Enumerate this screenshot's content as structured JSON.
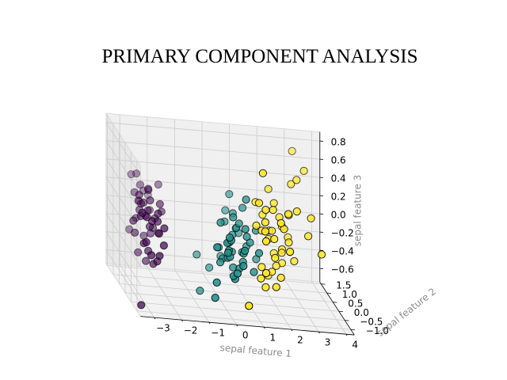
{
  "chart_data": {
    "type": "scatter",
    "projection": "3d",
    "title": "PRIMARY COMPONENT ANALYSIS",
    "xlabel": "sepal feature 1",
    "ylabel": "sepal feature 2",
    "zlabel": "sepal feature 3",
    "xlim": [
      -3.5,
      4.3
    ],
    "ylim": [
      -1.3,
      1.6
    ],
    "zlim": [
      -0.75,
      0.9
    ],
    "xticks": [
      "−3",
      "−2",
      "−1",
      "0",
      "1",
      "2",
      "3",
      "4"
    ],
    "yticks": [
      "−1.0",
      "−0.5",
      "0.0",
      "0.5",
      "1.0",
      "1.5"
    ],
    "zticks": [
      "−0.6",
      "−0.4",
      "−0.2",
      "0.0",
      "0.2",
      "0.4",
      "0.6",
      "0.8"
    ],
    "grid": true,
    "colors": {
      "class_0": "#440154",
      "class_1": "#21918c",
      "class_2": "#fde725"
    },
    "series": [
      {
        "points": [
          [
            -2.8,
            0.3,
            0.05
          ],
          [
            -2.9,
            -0.2,
            -0.15
          ],
          [
            -3.0,
            -0.3,
            0.2
          ],
          [
            -3.1,
            0.1,
            -0.1
          ],
          [
            -2.6,
            0.8,
            0.3
          ],
          [
            -2.5,
            0.4,
            0.1
          ],
          [
            -2.3,
            -0.1,
            -0.05
          ],
          [
            -2.7,
            0.5,
            0.15
          ],
          [
            -2.4,
            1.0,
            0.2
          ],
          [
            -2.8,
            -0.6,
            -0.2
          ],
          [
            -2.6,
            0.0,
            0.0
          ],
          [
            -2.9,
            0.6,
            0.25
          ],
          [
            -2.2,
            0.2,
            -0.1
          ],
          [
            -2.5,
            -0.4,
            -0.3
          ],
          [
            -2.7,
            0.9,
            0.4
          ],
          [
            -2.3,
            0.7,
            0.05
          ],
          [
            -2.9,
            0.3,
            -0.35
          ],
          [
            -2.4,
            -0.2,
            0.1
          ],
          [
            -2.6,
            0.5,
            -0.2
          ],
          [
            -3.2,
            0.0,
            0.05
          ],
          [
            -2.8,
            1.1,
            0.35
          ],
          [
            -2.1,
            0.3,
            0.2
          ],
          [
            -2.7,
            -0.1,
            -0.25
          ],
          [
            -2.5,
            0.6,
            0.0
          ],
          [
            -2.3,
            -0.5,
            -0.1
          ],
          [
            -2.9,
            0.2,
            0.3
          ],
          [
            -2.4,
            0.4,
            -0.15
          ],
          [
            -2.6,
            0.9,
            0.1
          ],
          [
            -2.2,
            -0.3,
            0.05
          ],
          [
            -2.7,
            0.1,
            -0.4
          ],
          [
            -2.5,
            0.2,
            0.25
          ],
          [
            -2.8,
            0.7,
            -0.05
          ],
          [
            -2.3,
            0.0,
            0.15
          ],
          [
            -2.6,
            -0.2,
            0.1
          ],
          [
            -2.4,
            0.6,
            0.3
          ],
          [
            -2.9,
            -0.4,
            -0.1
          ],
          [
            -2.2,
            0.5,
            0.0
          ],
          [
            -2.7,
            0.3,
            0.2
          ],
          [
            -3.0,
            0.8,
            -0.2
          ],
          [
            -2.5,
            1.2,
            0.05
          ],
          [
            -2.0,
            0.4,
            0.1
          ],
          [
            -2.6,
            -0.3,
            -0.35
          ],
          [
            -2.4,
            0.2,
            -0.05
          ],
          [
            -2.8,
            0.4,
            0.1
          ],
          [
            -2.3,
            0.8,
            0.25
          ],
          [
            -2.5,
            -0.6,
            -0.2
          ],
          [
            -2.7,
            0.0,
            0.1
          ],
          [
            -3.3,
            -0.9,
            -0.7
          ],
          [
            -1.9,
            0.9,
            0.3
          ],
          [
            -2.1,
            1.3,
            0.1
          ]
        ]
      },
      {
        "points": [
          [
            0.9,
            0.3,
            -0.25
          ],
          [
            0.6,
            0.4,
            0.15
          ],
          [
            1.1,
            0.1,
            -0.1
          ],
          [
            0.2,
            -0.6,
            -0.35
          ],
          [
            0.8,
            -0.2,
            0.1
          ],
          [
            0.4,
            0.0,
            -0.2
          ],
          [
            1.0,
            0.5,
            0.2
          ],
          [
            -0.5,
            -0.8,
            -0.4
          ],
          [
            0.7,
            -0.3,
            -0.15
          ],
          [
            0.1,
            -0.5,
            0.05
          ],
          [
            -0.8,
            0.2,
            -0.3
          ],
          [
            0.5,
            0.2,
            -0.05
          ],
          [
            0.3,
            -0.7,
            -0.3
          ],
          [
            0.9,
            -0.1,
            0.0
          ],
          [
            -0.2,
            -0.4,
            -0.25
          ],
          [
            0.6,
            0.7,
            0.3
          ],
          [
            0.4,
            -0.1,
            -0.35
          ],
          [
            0.2,
            -0.3,
            -0.2
          ],
          [
            1.2,
            0.0,
            -0.4
          ],
          [
            0.0,
            -0.6,
            -0.1
          ],
          [
            1.0,
            0.2,
            0.35
          ],
          [
            0.3,
            0.4,
            0.05
          ],
          [
            1.3,
            -0.2,
            -0.15
          ],
          [
            0.8,
            0.6,
            -0.05
          ],
          [
            0.5,
            -0.4,
            -0.3
          ],
          [
            0.7,
            0.1,
            0.1
          ],
          [
            1.1,
            0.4,
            -0.2
          ],
          [
            1.4,
            0.3,
            0.0
          ],
          [
            0.6,
            -0.5,
            -0.25
          ],
          [
            -0.3,
            0.3,
            -0.45
          ],
          [
            -0.1,
            -0.2,
            0.15
          ],
          [
            -0.4,
            -0.6,
            -0.05
          ],
          [
            0.1,
            0.1,
            -0.3
          ],
          [
            1.5,
            0.5,
            -0.35
          ],
          [
            0.2,
            -0.2,
            -0.15
          ],
          [
            0.5,
            0.8,
            0.1
          ],
          [
            0.9,
            0.6,
            -0.1
          ],
          [
            0.7,
            -0.4,
            -0.1
          ],
          [
            0.0,
            0.2,
            -0.2
          ],
          [
            0.3,
            -0.5,
            -0.4
          ],
          [
            0.4,
            -0.1,
            0.2
          ],
          [
            0.8,
            0.0,
            -0.3
          ],
          [
            0.1,
            -0.3,
            -0.05
          ],
          [
            -0.6,
            -0.9,
            -0.55
          ],
          [
            0.2,
            0.5,
            -0.35
          ],
          [
            0.2,
            -0.4,
            0.0
          ],
          [
            0.3,
            0.0,
            -0.1
          ],
          [
            0.6,
            0.1,
            0.05
          ],
          [
            -0.9,
            -0.3,
            -0.6
          ],
          [
            0.2,
            -0.1,
            -0.25
          ]
        ]
      },
      {
        "points": [
          [
            2.5,
            0.1,
            0.25
          ],
          [
            1.4,
            -0.5,
            0.15
          ],
          [
            2.6,
            0.3,
            -0.1
          ],
          [
            1.9,
            -0.1,
            0.0
          ],
          [
            2.3,
            0.0,
            0.1
          ],
          [
            3.4,
            0.5,
            -0.05
          ],
          [
            0.5,
            -1.2,
            -0.55
          ],
          [
            2.9,
            0.3,
            0.25
          ],
          [
            2.3,
            -0.5,
            -0.05
          ],
          [
            2.9,
            0.8,
            0.45
          ],
          [
            1.6,
            0.2,
            0.2
          ],
          [
            1.8,
            -0.4,
            -0.15
          ],
          [
            2.1,
            0.2,
            -0.35
          ],
          [
            1.3,
            -0.8,
            -0.25
          ],
          [
            1.5,
            -0.3,
            -0.5
          ],
          [
            1.9,
            0.1,
            0.05
          ],
          [
            1.9,
            0.0,
            0.3
          ],
          [
            3.5,
            1.1,
            0.55
          ],
          [
            3.8,
            0.3,
            -0.2
          ],
          [
            1.3,
            -0.8,
            0.1
          ],
          [
            2.4,
            0.4,
            -0.2
          ],
          [
            1.2,
            -0.6,
            -0.35
          ],
          [
            3.5,
            0.5,
            0.15
          ],
          [
            1.4,
            -0.2,
            0.1
          ],
          [
            2.3,
            0.4,
            0.15
          ],
          [
            2.7,
            0.6,
            -0.1
          ],
          [
            1.3,
            -0.2,
            0.4
          ],
          [
            1.3,
            0.1,
            0.35
          ],
          [
            2.1,
            -0.2,
            -0.4
          ],
          [
            2.4,
            0.4,
            0.05
          ],
          [
            2.8,
            0.3,
            -0.3
          ],
          [
            3.2,
            1.4,
            0.7
          ],
          [
            2.1,
            -0.2,
            0.2
          ],
          [
            1.4,
            -0.2,
            -0.3
          ],
          [
            1.8,
            -0.5,
            -0.45
          ],
          [
            3.1,
            0.8,
            0.5
          ],
          [
            2.1,
            0.4,
            -0.25
          ],
          [
            1.9,
            0.4,
            -0.1
          ],
          [
            1.2,
            -0.2,
            0.15
          ],
          [
            2.1,
            0.4,
            0.3
          ],
          [
            2.3,
            0.2,
            -0.2
          ],
          [
            1.9,
            0.4,
            0.45
          ],
          [
            1.4,
            -0.5,
            0.25
          ],
          [
            2.6,
            0.3,
            0.2
          ],
          [
            2.4,
            0.4,
            -0.35
          ],
          [
            1.9,
            0.1,
            -0.4
          ],
          [
            1.5,
            -0.3,
            0.35
          ],
          [
            1.8,
            0.1,
            0.05
          ],
          [
            1.9,
            0.4,
            -0.5
          ],
          [
            1.4,
            -0.3,
            0.75
          ]
        ]
      }
    ]
  }
}
